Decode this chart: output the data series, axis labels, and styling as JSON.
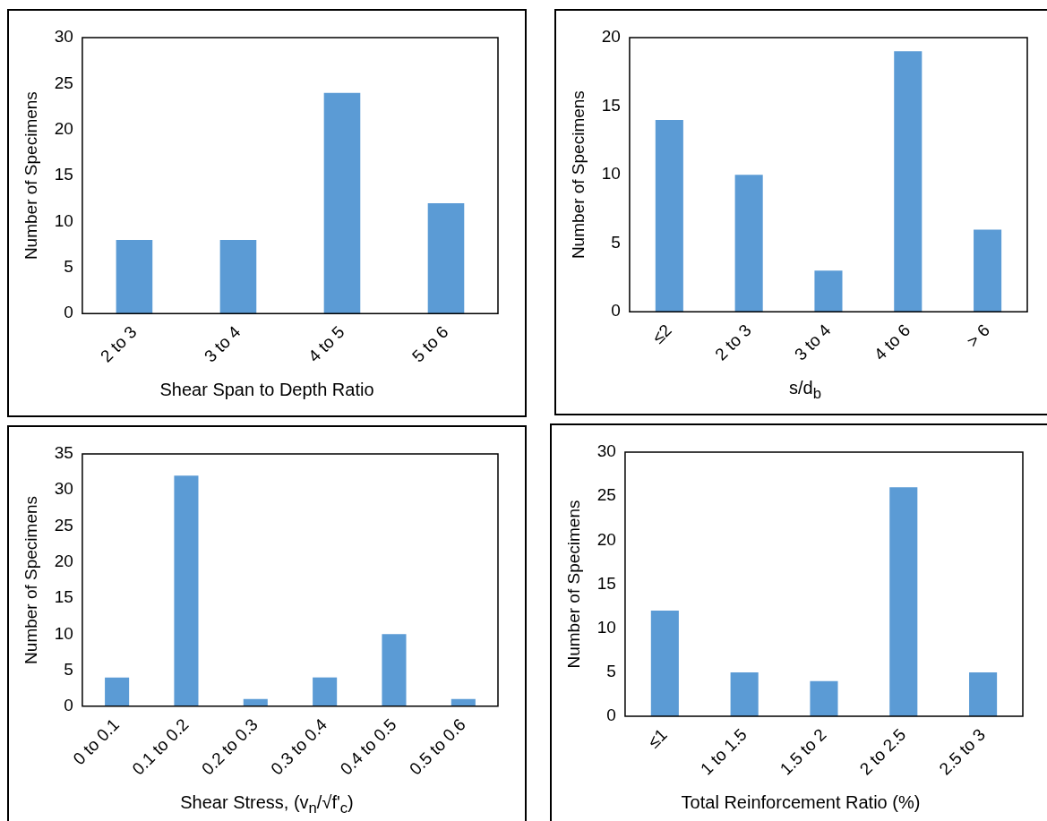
{
  "chart_data": [
    {
      "type": "bar",
      "xlabel": "Shear Span to Depth Ratio",
      "ylabel": "Number of Specimens",
      "categories": [
        "2 to 3",
        "3 to 4",
        "4 to 5",
        "5 to 6"
      ],
      "values": [
        8,
        8,
        24,
        12
      ],
      "color": "#5b9bd5",
      "ylim": [
        0,
        30
      ],
      "yticks": [
        0,
        5,
        10,
        15,
        20,
        25,
        30
      ],
      "grid": false,
      "legend": false
    },
    {
      "type": "bar",
      "xlabel": "s/d$_{b}$",
      "ylabel": "Number of Specimens",
      "categories": [
        "≤2",
        "2 to 3",
        "3 to 4",
        "4 to 6",
        "> 6"
      ],
      "values": [
        14,
        10,
        3,
        19,
        6
      ],
      "color": "#5b9bd5",
      "ylim": [
        0,
        20
      ],
      "yticks": [
        0,
        5,
        10,
        15,
        20
      ],
      "grid": false,
      "legend": false
    },
    {
      "type": "bar",
      "xlabel": "Shear Stress, (v$_{n}$/√f'$_{c}$)",
      "ylabel": "Number of Specimens",
      "categories": [
        "0 to 0.1",
        "0.1 to 0.2",
        "0.2 to 0.3",
        "0.3 to 0.4",
        "0.4 to 0.5",
        "0.5 to 0.6"
      ],
      "values": [
        4,
        32,
        1,
        4,
        10,
        1
      ],
      "color": "#5b9bd5",
      "ylim": [
        0,
        35
      ],
      "yticks": [
        0,
        5,
        10,
        15,
        20,
        25,
        30,
        35
      ],
      "grid": false,
      "legend": false
    },
    {
      "type": "bar",
      "xlabel": "Total Reinforcement Ratio (%)",
      "ylabel": "Number of Specimens",
      "categories": [
        "≤1",
        "1 to 1.5",
        "1.5 to 2",
        "2 to 2.5",
        "2.5 to 3"
      ],
      "values": [
        12,
        5,
        4,
        26,
        5
      ],
      "color": "#5b9bd5",
      "ylim": [
        0,
        30
      ],
      "yticks": [
        0,
        5,
        10,
        15,
        20,
        25,
        30
      ],
      "grid": false,
      "legend": false
    }
  ]
}
